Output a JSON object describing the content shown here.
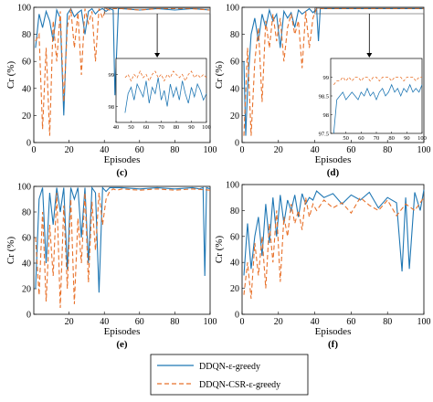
{
  "legend": {
    "s1": {
      "name": "DDQN-ε-greedy",
      "color": "#1f77b4",
      "dash": "solid"
    },
    "s2": {
      "name": "DDQN-CSR-ε-greedy",
      "color": "#e8712a",
      "dash": "dashed"
    }
  },
  "chart_data": [
    {
      "panel": "(c)",
      "type": "line",
      "xlabel": "Episodes",
      "ylabel": "Cr (%)",
      "xlim": [
        0,
        100
      ],
      "ylim": [
        0,
        100
      ],
      "xticks": [
        "0",
        "20",
        "40",
        "60",
        "80",
        "100"
      ],
      "yticks": [
        "0",
        "20",
        "40",
        "60",
        "80",
        "100"
      ],
      "series": [
        {
          "name": "DDQN-ε-greedy",
          "x": [
            1,
            3,
            5,
            7,
            9,
            11,
            13,
            15,
            17,
            19,
            21,
            23,
            25,
            27,
            29,
            31,
            33,
            35,
            37,
            39,
            41,
            43,
            45,
            46,
            48,
            50,
            60,
            70,
            80,
            90,
            100
          ],
          "values": [
            70,
            95,
            85,
            97,
            90,
            75,
            98,
            92,
            20,
            95,
            99,
            93,
            96,
            98,
            80,
            97,
            99,
            95,
            98,
            99,
            97,
            99,
            98,
            35,
            99,
            99,
            98,
            99,
            98,
            99,
            98
          ]
        },
        {
          "name": "DDQN-CSR-ε-greedy",
          "x": [
            1,
            3,
            5,
            7,
            9,
            11,
            13,
            15,
            17,
            19,
            21,
            23,
            25,
            27,
            29,
            31,
            33,
            35,
            37,
            39,
            41,
            43,
            45,
            47,
            50,
            60,
            70,
            80,
            90,
            100
          ],
          "values": [
            75,
            80,
            10,
            70,
            5,
            90,
            60,
            97,
            30,
            85,
            99,
            70,
            96,
            50,
            99,
            88,
            97,
            60,
            99,
            92,
            99,
            98,
            99,
            99,
            99,
            98,
            99,
            99,
            99,
            98
          ]
        }
      ],
      "inset": {
        "xlim": [
          40,
          100
        ],
        "ylim": [
          97.5,
          99.5
        ],
        "xticks": [
          "40",
          "50",
          "60",
          "70",
          "80",
          "90",
          "100"
        ],
        "yticks": [
          "98",
          "99"
        ],
        "series": [
          {
            "name": "DDQN-ε-greedy",
            "x": [
              46,
              48,
              50,
              52,
              54,
              56,
              58,
              60,
              62,
              64,
              66,
              68,
              70,
              72,
              74,
              76,
              78,
              80,
              82,
              84,
              86,
              88,
              90,
              92,
              94,
              96,
              98,
              100
            ],
            "values": [
              97.8,
              98.4,
              98.6,
              98.2,
              98.7,
              98.5,
              98.3,
              98.8,
              98.1,
              98.6,
              98.4,
              98.9,
              98.2,
              98.5,
              98.0,
              98.7,
              98.3,
              98.6,
              98.2,
              98.8,
              98.4,
              98.1,
              98.6,
              98.3,
              98.7,
              98.5,
              98.2,
              98.4
            ]
          },
          {
            "name": "DDQN-CSR-ε-greedy",
            "x": [
              46,
              48,
              50,
              52,
              54,
              56,
              58,
              60,
              62,
              64,
              66,
              68,
              70,
              72,
              74,
              76,
              78,
              80,
              82,
              84,
              86,
              88,
              90,
              92,
              94,
              96,
              98,
              100
            ],
            "values": [
              98.9,
              99.0,
              98.8,
              99.0,
              98.9,
              99.1,
              98.9,
              99.0,
              98.8,
              99.0,
              99.1,
              98.9,
              99.0,
              98.8,
              99.0,
              98.9,
              99.1,
              99.0,
              98.9,
              99.0,
              98.8,
              99.0,
              99.1,
              98.9,
              99.0,
              98.9,
              99.0,
              98.9
            ]
          }
        ]
      }
    },
    {
      "panel": "(d)",
      "type": "line",
      "xlabel": "Episodes",
      "ylabel": "Cr (%)",
      "xlim": [
        0,
        100
      ],
      "ylim": [
        0,
        100
      ],
      "xticks": [
        "0",
        "20",
        "40",
        "60",
        "80",
        "100"
      ],
      "yticks": [
        "0",
        "20",
        "40",
        "60",
        "80",
        "100"
      ],
      "series": [
        {
          "name": "DDQN-ε-greedy",
          "x": [
            1,
            2,
            3,
            5,
            7,
            9,
            11,
            13,
            15,
            17,
            19,
            21,
            23,
            25,
            27,
            29,
            31,
            33,
            35,
            37,
            39,
            41,
            42,
            43,
            45,
            50,
            60,
            70,
            80,
            90,
            100
          ],
          "values": [
            60,
            5,
            40,
            80,
            92,
            75,
            95,
            85,
            98,
            90,
            95,
            70,
            97,
            92,
            96,
            85,
            98,
            95,
            97,
            99,
            96,
            99,
            75,
            99,
            99,
            99,
            99,
            99,
            99,
            99,
            99
          ]
        },
        {
          "name": "DDQN-CSR-ε-greedy",
          "x": [
            1,
            3,
            5,
            7,
            9,
            11,
            13,
            15,
            17,
            19,
            21,
            23,
            25,
            27,
            29,
            31,
            33,
            35,
            37,
            39,
            41,
            43,
            45,
            50,
            60,
            70,
            80,
            90,
            100
          ],
          "values": [
            5,
            70,
            5,
            60,
            85,
            30,
            90,
            70,
            95,
            75,
            92,
            60,
            85,
            95,
            80,
            90,
            55,
            97,
            70,
            92,
            99,
            99,
            99,
            99,
            99,
            99,
            99,
            99,
            99
          ]
        }
      ],
      "inset": {
        "xlim": [
          40,
          100
        ],
        "ylim": [
          97.5,
          99.5
        ],
        "xticks": [
          "50",
          "60",
          "70",
          "80",
          "90",
          "100"
        ],
        "yticks": [
          "97.5",
          "98",
          "98.5",
          "99"
        ],
        "series": [
          {
            "name": "DDQN-ε-greedy",
            "x": [
              42,
              44,
              46,
              48,
              50,
              52,
              54,
              56,
              58,
              60,
              62,
              64,
              66,
              68,
              70,
              72,
              74,
              76,
              78,
              80,
              82,
              84,
              86,
              88,
              90,
              92,
              94,
              96,
              98,
              100
            ],
            "values": [
              97.3,
              98.4,
              98.5,
              98.6,
              98.4,
              98.5,
              98.6,
              98.5,
              98.4,
              98.6,
              98.5,
              98.7,
              98.5,
              98.6,
              98.4,
              98.6,
              98.7,
              98.5,
              98.6,
              98.8,
              98.6,
              98.7,
              98.5,
              98.7,
              98.6,
              98.8,
              98.6,
              98.7,
              98.6,
              98.8
            ]
          },
          {
            "name": "DDQN-CSR-ε-greedy",
            "x": [
              42,
              44,
              46,
              48,
              50,
              52,
              54,
              56,
              58,
              60,
              62,
              64,
              66,
              68,
              70,
              72,
              74,
              76,
              78,
              80,
              82,
              84,
              86,
              88,
              90,
              92,
              94,
              96,
              98,
              100
            ],
            "values": [
              98.8,
              98.9,
              98.9,
              99.0,
              98.9,
              99.0,
              98.9,
              99.0,
              99.0,
              98.9,
              99.0,
              99.0,
              98.9,
              99.0,
              99.0,
              98.9,
              99.0,
              99.0,
              99.0,
              98.9,
              99.0,
              99.0,
              99.0,
              98.9,
              99.0,
              99.0,
              99.0,
              98.9,
              99.0,
              99.0
            ]
          }
        ]
      }
    },
    {
      "panel": "(e)",
      "type": "line",
      "xlabel": "Episodes",
      "ylabel": "Cr (%)",
      "xlim": [
        0,
        100
      ],
      "ylim": [
        0,
        100
      ],
      "xticks": [
        "20",
        "40",
        "60",
        "80",
        "100"
      ],
      "yticks": [
        "0",
        "20",
        "40",
        "60",
        "80",
        "100"
      ],
      "series": [
        {
          "name": "DDQN-ε-greedy",
          "x": [
            1,
            3,
            5,
            7,
            9,
            11,
            13,
            15,
            17,
            19,
            21,
            23,
            25,
            27,
            29,
            31,
            33,
            35,
            37,
            39,
            41,
            43,
            45,
            47,
            50,
            60,
            70,
            80,
            90,
            94,
            96,
            97,
            98,
            100
          ],
          "values": [
            20,
            90,
            99,
            40,
            95,
            70,
            99,
            80,
            99,
            35,
            99,
            90,
            99,
            60,
            99,
            40,
            99,
            95,
            17,
            99,
            96,
            99,
            99,
            99,
            99,
            98,
            99,
            98,
            99,
            98,
            99,
            30,
            99,
            98
          ]
        },
        {
          "name": "DDQN-CSR-ε-greedy",
          "x": [
            1,
            3,
            5,
            7,
            9,
            11,
            13,
            15,
            17,
            19,
            21,
            23,
            25,
            27,
            29,
            31,
            33,
            35,
            37,
            39,
            41,
            43,
            45,
            47,
            50,
            60,
            70,
            80,
            90,
            100
          ],
          "values": [
            60,
            15,
            80,
            10,
            70,
            30,
            95,
            5,
            85,
            20,
            90,
            8,
            75,
            40,
            95,
            25,
            88,
            50,
            95,
            70,
            90,
            96,
            98,
            97,
            98,
            97,
            98,
            97,
            98,
            97
          ]
        }
      ]
    },
    {
      "panel": "(f)",
      "type": "line",
      "xlabel": "Episodes",
      "ylabel": "Cr (%)",
      "xlim": [
        0,
        100
      ],
      "ylim": [
        0,
        100
      ],
      "xticks": [
        "0",
        "20",
        "40",
        "60",
        "80",
        "100"
      ],
      "yticks": [
        "0",
        "20",
        "40",
        "60",
        "80",
        "100"
      ],
      "series": [
        {
          "name": "DDQN-ε-greedy",
          "x": [
            1,
            3,
            5,
            7,
            9,
            11,
            13,
            15,
            17,
            19,
            21,
            23,
            25,
            27,
            29,
            31,
            33,
            35,
            37,
            39,
            41,
            45,
            50,
            55,
            60,
            65,
            70,
            75,
            80,
            85,
            88,
            90,
            92,
            95,
            98,
            100
          ],
          "values": [
            30,
            70,
            35,
            60,
            75,
            45,
            85,
            55,
            90,
            60,
            92,
            70,
            88,
            80,
            92,
            75,
            93,
            85,
            90,
            88,
            95,
            90,
            93,
            85,
            92,
            88,
            94,
            82,
            90,
            86,
            33,
            90,
            35,
            94,
            80,
            96
          ]
        },
        {
          "name": "DDQN-CSR-ε-greedy",
          "x": [
            1,
            3,
            5,
            7,
            9,
            11,
            13,
            15,
            17,
            19,
            21,
            23,
            25,
            27,
            29,
            31,
            33,
            35,
            37,
            39,
            41,
            45,
            50,
            55,
            60,
            65,
            70,
            75,
            80,
            85,
            90,
            95,
            100
          ],
          "values": [
            15,
            40,
            12,
            55,
            30,
            60,
            20,
            70,
            40,
            80,
            25,
            75,
            60,
            85,
            70,
            80,
            65,
            90,
            75,
            85,
            80,
            88,
            82,
            86,
            78,
            90,
            84,
            80,
            88,
            76,
            85,
            80,
            90
          ]
        }
      ]
    }
  ]
}
